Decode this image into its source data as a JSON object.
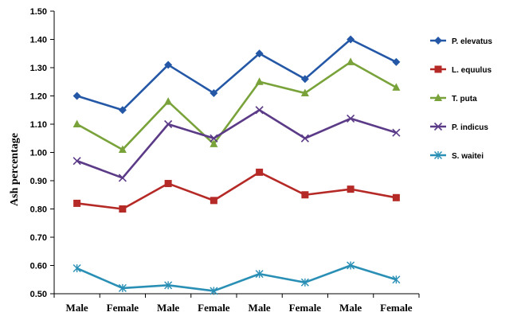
{
  "chart_data": {
    "type": "line",
    "categories": [
      "Male",
      "Female",
      "Male",
      "Female",
      "Male",
      "Female",
      "Male",
      "Female"
    ],
    "ylabel": "Ash percentage",
    "xlabel": "",
    "ylim": [
      0.5,
      1.5
    ],
    "y_ticks": [
      "0.50",
      "0.60",
      "0.70",
      "0.80",
      "0.90",
      "1.00",
      "1.10",
      "1.20",
      "1.30",
      "1.40",
      "1.50"
    ],
    "grid": false,
    "legend_position": "right",
    "series": [
      {
        "name": "P. elevatus",
        "color": "#2458a6",
        "marker": "diamond",
        "values": [
          1.2,
          1.15,
          1.31,
          1.21,
          1.35,
          1.26,
          1.4,
          1.32
        ]
      },
      {
        "name": "L. equulus",
        "color": "#b52a26",
        "marker": "square",
        "values": [
          0.82,
          0.8,
          0.89,
          0.83,
          0.93,
          0.85,
          0.87,
          0.84
        ]
      },
      {
        "name": "T. puta",
        "color": "#79a33a",
        "marker": "triangle",
        "values": [
          1.1,
          1.01,
          1.18,
          1.03,
          1.25,
          1.21,
          1.32,
          1.23
        ]
      },
      {
        "name": "P. indicus",
        "color": "#5b3a87",
        "marker": "x",
        "values": [
          0.97,
          0.91,
          1.1,
          1.05,
          1.15,
          1.05,
          1.12,
          1.07
        ]
      },
      {
        "name": "S. waitei",
        "color": "#2a8fb5",
        "marker": "star",
        "values": [
          0.59,
          0.52,
          0.53,
          0.51,
          0.57,
          0.54,
          0.6,
          0.55
        ]
      }
    ]
  }
}
